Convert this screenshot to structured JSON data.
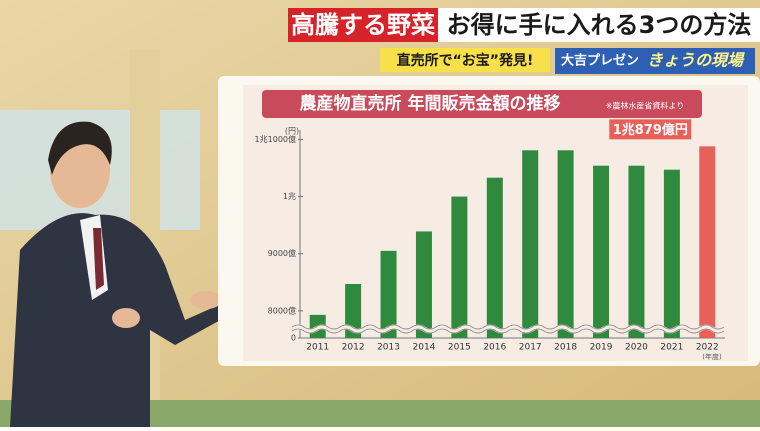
{
  "screen": {
    "headline_tag": "高騰する野菜",
    "headline": "お得に手に入れる3つの方法",
    "subtitle": "直売所で“お宝”発見!",
    "corner_tag": "大吉プレゼン",
    "corner_title": "きょうの現場"
  },
  "chart_data": {
    "type": "bar",
    "title": "農産物直売所 年間販売金額の推移",
    "source": "※農林水産省資料より",
    "y_unit": "(円)",
    "x_unit": "(年度)",
    "categories": [
      "2011",
      "2012",
      "2013",
      "2014",
      "2015",
      "2016",
      "2017",
      "2018",
      "2019",
      "2020",
      "2021",
      "2022"
    ],
    "values": [
      7930,
      8470,
      9050,
      9390,
      10000,
      10330,
      10810,
      10810,
      10540,
      10540,
      10470,
      10879
    ],
    "value_labels": [
      null,
      null,
      null,
      null,
      null,
      null,
      null,
      null,
      null,
      null,
      null,
      "1兆879億円"
    ],
    "colors": [
      "#2f8a3e",
      "#2f8a3e",
      "#2f8a3e",
      "#2f8a3e",
      "#2f8a3e",
      "#2f8a3e",
      "#2f8a3e",
      "#2f8a3e",
      "#2f8a3e",
      "#2f8a3e",
      "#2f8a3e",
      "#e8605a"
    ],
    "ylim": [
      0,
      11200
    ],
    "axis_break": [
      0,
      7700
    ],
    "yticks": [
      0,
      {
        "value": 8000,
        "label": "8000億"
      },
      {
        "value": 9000,
        "label": "9000億"
      },
      {
        "value": 10000,
        "label": "1兆"
      },
      {
        "value": 11000,
        "label": "1兆1000億"
      }
    ]
  }
}
